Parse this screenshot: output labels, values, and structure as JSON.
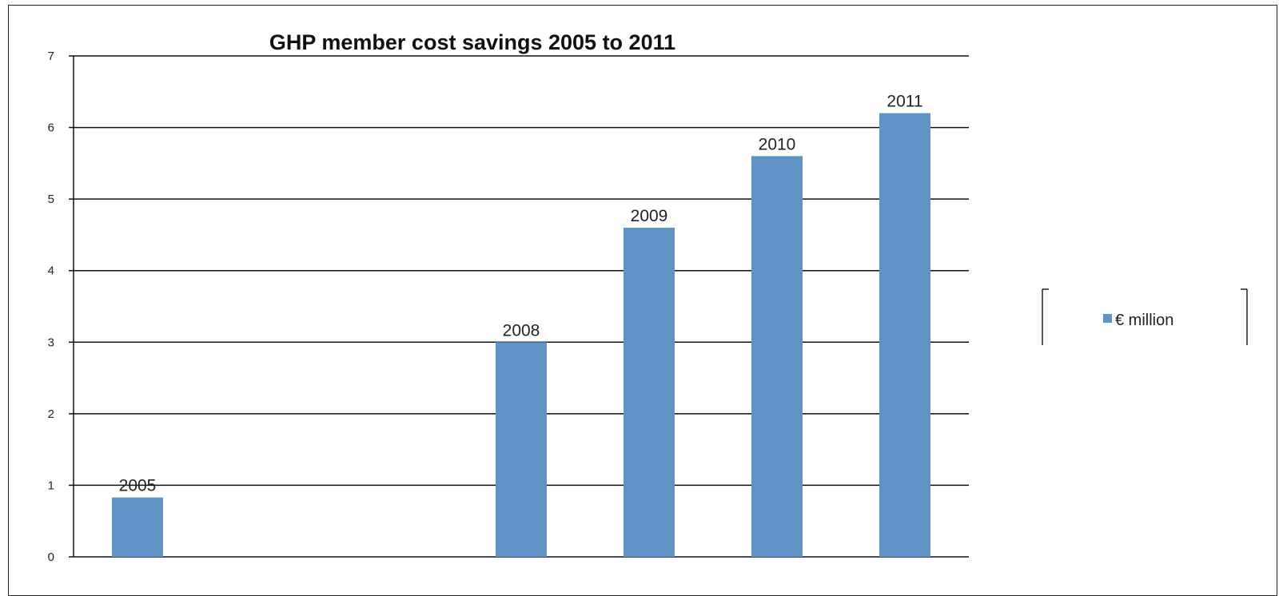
{
  "chart_data": {
    "type": "bar",
    "title": "GHP member cost savings 2005 to 2011",
    "xlabel": "",
    "ylabel": "",
    "ylim": [
      0,
      7
    ],
    "yticks": [
      0,
      1,
      2,
      3,
      4,
      5,
      6,
      7
    ],
    "grid": true,
    "legend_position": "right",
    "slot_count": 7,
    "categories": [
      "2005",
      "2008",
      "2009",
      "2010",
      "2011"
    ],
    "category_slots": [
      0,
      3,
      4,
      5,
      6
    ],
    "series": [
      {
        "name": "€ million",
        "color": "#6194c6",
        "values": [
          0.83,
          3.0,
          4.6,
          5.6,
          6.2
        ]
      }
    ]
  }
}
